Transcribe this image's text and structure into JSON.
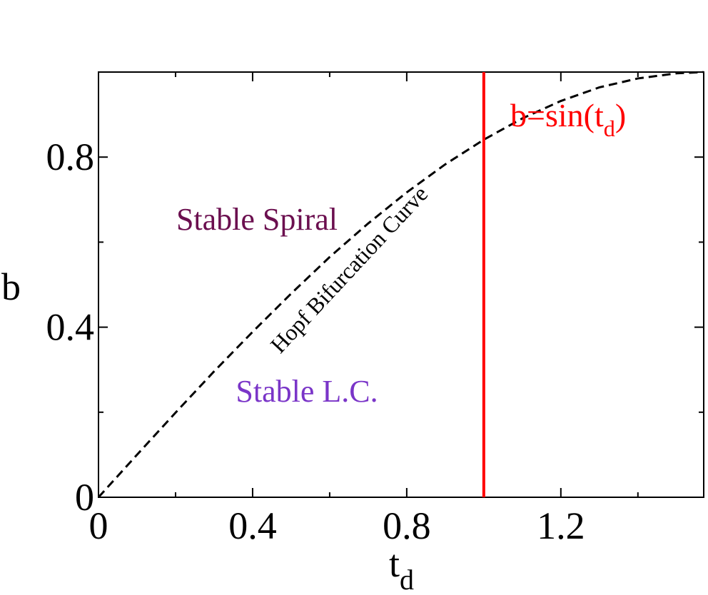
{
  "chart_data": {
    "type": "line",
    "xlabel": {
      "text": "t",
      "sub": "d"
    },
    "ylabel": "b",
    "xlim": [
      0,
      1.5708
    ],
    "ylim": [
      0,
      1
    ],
    "xticks": [
      0,
      0.4,
      0.8,
      1.2
    ],
    "yticks": [
      0,
      0.4,
      0.8
    ],
    "xminor": [
      0.2,
      0.6,
      1.0,
      1.4
    ],
    "yminor": [
      0.2,
      0.6,
      1.0
    ],
    "series": [
      {
        "color": "#000000",
        "dash": true,
        "x": [
          0,
          0.1,
          0.2,
          0.3,
          0.4,
          0.5,
          0.6,
          0.7,
          0.8,
          0.9,
          1.0,
          1.1,
          1.2,
          1.3,
          1.4,
          1.5,
          1.57
        ],
        "values": [
          0,
          0.1,
          0.199,
          0.296,
          0.389,
          0.479,
          0.565,
          0.644,
          0.717,
          0.783,
          0.841,
          0.891,
          0.932,
          0.964,
          0.985,
          0.997,
          1.0
        ]
      },
      {
        "color": "#ff0000",
        "dash": false,
        "x": [
          1.0,
          1.0
        ],
        "values": [
          0,
          1
        ]
      }
    ],
    "annotations": [
      {
        "parts": [
          "Stable Spiral"
        ],
        "color": "#6b0f4f"
      },
      {
        "parts": [
          "Stable L.C."
        ],
        "color": "#7a35c8"
      },
      {
        "parts": [
          "Hopf Bifurcation Curve"
        ],
        "color": "#000000"
      },
      {
        "parts": [
          "b=sin(t",
          "d",
          ")"
        ],
        "color": "#ff0000"
      }
    ]
  }
}
